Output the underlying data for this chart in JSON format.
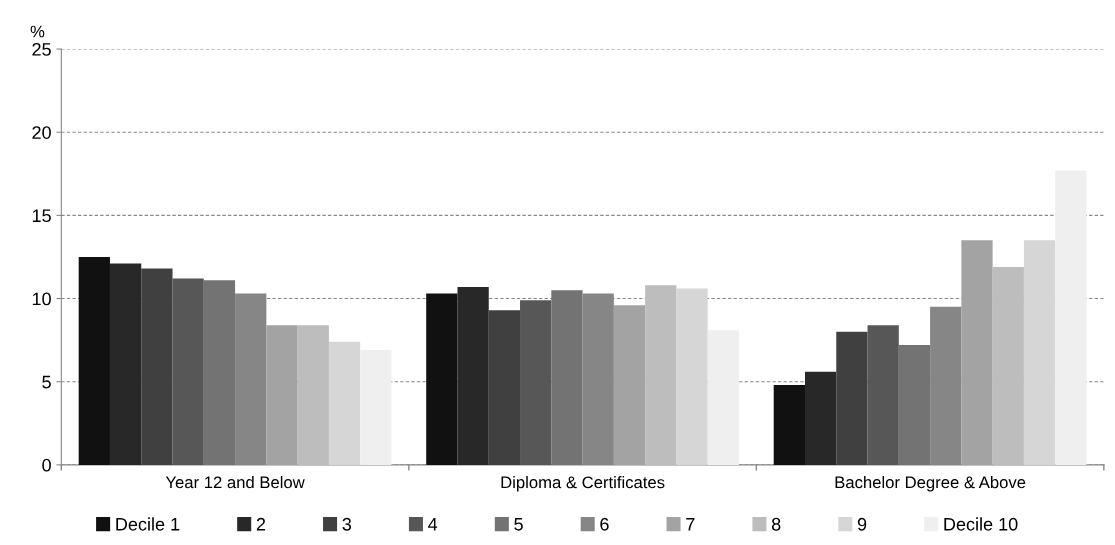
{
  "chart_data": {
    "type": "bar",
    "ylabel": "%",
    "categories": [
      "Year 12 and Below",
      "Diploma & Certificates",
      "Bachelor Degree & Above"
    ],
    "series": [
      {
        "name": "Decile 1",
        "color": "#111111",
        "values": [
          12.5,
          10.3,
          4.8
        ]
      },
      {
        "name": "2",
        "color": "#282828",
        "values": [
          12.1,
          10.7,
          5.6
        ]
      },
      {
        "name": "3",
        "color": "#404040",
        "values": [
          11.8,
          9.3,
          8.0
        ]
      },
      {
        "name": "4",
        "color": "#575757",
        "values": [
          11.2,
          9.9,
          8.4
        ]
      },
      {
        "name": "5",
        "color": "#737373",
        "values": [
          11.1,
          10.5,
          7.2
        ]
      },
      {
        "name": "6",
        "color": "#868686",
        "values": [
          10.3,
          10.3,
          9.5
        ]
      },
      {
        "name": "7",
        "color": "#a3a3a3",
        "values": [
          8.4,
          9.6,
          13.5
        ]
      },
      {
        "name": "8",
        "color": "#bdbdbd",
        "values": [
          8.4,
          10.8,
          11.9
        ]
      },
      {
        "name": "9",
        "color": "#d6d6d6",
        "values": [
          7.4,
          10.6,
          13.5
        ]
      },
      {
        "name": "Decile 10",
        "color": "#efefef",
        "values": [
          6.9,
          8.1,
          17.7
        ]
      }
    ],
    "ylim": [
      0,
      25
    ],
    "yticks": [
      0,
      5,
      10,
      15,
      20,
      25
    ],
    "grid": "y",
    "legend": "bottom"
  }
}
